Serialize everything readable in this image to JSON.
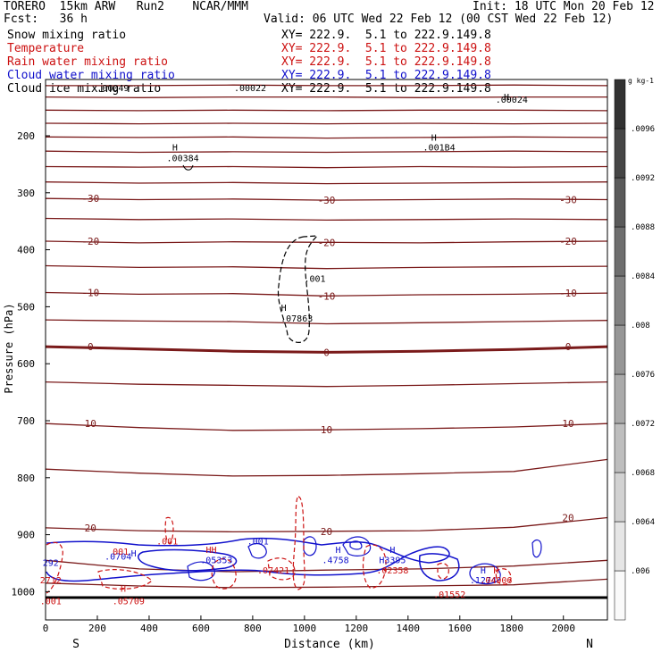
{
  "header": {
    "model": "TORERO  15km ARW   Run2    NCAR/MMM",
    "init": "Init: 18 UTC Mon 20 Feb 12",
    "fcst": "Fcst:   36 h",
    "valid": "Valid: 06 UTC Wed 22 Feb 12 (00 CST Wed 22 Feb 12)",
    "fields": [
      {
        "name": "Snow mixing ratio",
        "xy": "XY= 222.9.  5.1 to 222.9.149.8",
        "color": "#000000"
      },
      {
        "name": "Temperature",
        "xy": "XY= 222.9.  5.1 to 222.9.149.8",
        "color": "#cc1111"
      },
      {
        "name": "Rain water mixing ratio",
        "xy": "XY= 222.9.  5.1 to 222.9.149.8",
        "color": "#cc1111"
      },
      {
        "name": "Cloud water mixing ratio",
        "xy": "XY= 222.9.  5.1 to 222.9.149.8",
        "color": "#1111cc"
      },
      {
        "name": "Cloud ice mixing ratio",
        "xy": "XY= 222.9.  5.1 to 222.9.149.8",
        "color": "#000000"
      }
    ]
  },
  "chart_data": {
    "type": "contour",
    "xlabel": "Distance (km)",
    "ylabel": "Pressure (hPa)",
    "xlim": [
      0,
      2170
    ],
    "ylim": [
      1010,
      100
    ],
    "x_ticks": [
      0,
      200,
      400,
      600,
      800,
      1000,
      1200,
      1400,
      1600,
      1800,
      2000
    ],
    "y_ticks": [
      200,
      300,
      400,
      500,
      600,
      700,
      800,
      900,
      1000
    ],
    "x_end_labels": {
      "left": "S",
      "right": "N"
    },
    "temperature_color": "#7a1a1a",
    "temperature_isotherms": [
      {
        "y": [
          112,
          112,
          111,
          112,
          112,
          111,
          112
        ],
        "bold": false
      },
      {
        "y": [
          132,
          133,
          132,
          132,
          133,
          132,
          132
        ],
        "bold": false
      },
      {
        "y": [
          155,
          156,
          155,
          156,
          155,
          155,
          156
        ],
        "bold": false
      },
      {
        "y": [
          178,
          179,
          178,
          179,
          178,
          179,
          178
        ],
        "bold": false
      },
      {
        "y": [
          202,
          203,
          202,
          204,
          203,
          202,
          203
        ],
        "bold": false
      },
      {
        "y": [
          227,
          229,
          228,
          229,
          228,
          227,
          228
        ],
        "bold": false
      },
      {
        "y": [
          254,
          255,
          254,
          256,
          254,
          255,
          254
        ],
        "bold": false
      },
      {
        "y": [
          281,
          283,
          282,
          284,
          283,
          282,
          281
        ],
        "bold": false
      },
      {
        "y": [
          310,
          312,
          311,
          313,
          312,
          311,
          312
        ],
        "label": "-30",
        "bold": false
      },
      {
        "y": [
          345,
          347,
          346,
          348,
          347,
          346,
          347
        ],
        "bold": false
      },
      {
        "y": [
          385,
          388,
          386,
          387,
          388,
          386,
          385
        ],
        "label": "-20",
        "bold": false
      },
      {
        "y": [
          428,
          431,
          430,
          433,
          431,
          430,
          429
        ],
        "bold": false
      },
      {
        "y": [
          475,
          478,
          477,
          481,
          479,
          478,
          476
        ],
        "label": "-10",
        "bold": false
      },
      {
        "y": [
          523,
          525,
          526,
          530,
          528,
          526,
          524
        ],
        "bold": false
      },
      {
        "y": [
          570,
          574,
          578,
          580,
          578,
          575,
          570
        ],
        "label": "0",
        "bold": true
      },
      {
        "y": [
          632,
          636,
          638,
          640,
          638,
          635,
          632
        ],
        "bold": false
      },
      {
        "y": [
          705,
          712,
          717,
          716,
          714,
          711,
          705
        ],
        "label": "10",
        "bold": false
      },
      {
        "y": [
          785,
          792,
          797,
          796,
          793,
          789,
          768
        ],
        "bold": false
      },
      {
        "y": [
          888,
          893,
          895,
          894,
          893,
          887,
          870
        ],
        "label": "20",
        "bold": false
      },
      {
        "y": [
          945,
          960,
          965,
          962,
          960,
          955,
          945
        ],
        "bold": false
      },
      {
        "y": [
          985,
          990,
          993,
          992,
          990,
          988,
          978
        ],
        "bold": false
      }
    ],
    "maxima_labels": [
      {
        "x": 260,
        "p": 122,
        "text": ".00049",
        "color": "#000000"
      },
      {
        "x": 790,
        "p": 122,
        "text": ".00022",
        "color": "#000000"
      },
      {
        "x": 1780,
        "p": 137,
        "text": "H",
        "color": "#000000"
      },
      {
        "x": 1800,
        "p": 142,
        "text": ".00024",
        "color": "#000000"
      },
      {
        "x": 1500,
        "p": 209,
        "text": "H",
        "color": "#000000"
      },
      {
        "x": 1520,
        "p": 226,
        "text": ".001B4",
        "color": "#000000"
      },
      {
        "x": 500,
        "p": 226,
        "text": "H",
        "color": "#000000"
      },
      {
        "x": 530,
        "p": 245,
        "text": ".00384",
        "color": "#000000"
      },
      {
        "x": 1040,
        "p": 456,
        "text": ".001",
        "color": "#000000"
      },
      {
        "x": 920,
        "p": 507,
        "text": "H",
        "color": "#000000"
      },
      {
        "x": 970,
        "p": 526,
        "text": ".07863",
        "color": "#000000"
      },
      {
        "x": 340,
        "p": 938,
        "text": "H",
        "color": "#1111cc"
      },
      {
        "x": 280,
        "p": 944,
        "text": ".0704",
        "color": "#1111cc"
      },
      {
        "x": 290,
        "p": 935,
        "text": "001",
        "color": "#cc1111"
      },
      {
        "x": 470,
        "p": 917,
        "text": ".001",
        "color": "#cc1111"
      },
      {
        "x": 640,
        "p": 932,
        "text": "HH",
        "color": "#cc1111"
      },
      {
        "x": 660,
        "p": 950,
        "text": ".05353",
        "color": "#1111cc"
      },
      {
        "x": 820,
        "p": 917,
        "text": ".001",
        "color": "#1111cc"
      },
      {
        "x": 880,
        "p": 968,
        "text": ".07421",
        "color": "#cc1111"
      },
      {
        "x": 1120,
        "p": 950,
        "text": ".4758",
        "color": "#1111cc"
      },
      {
        "x": 1130,
        "p": 932,
        "text": "H",
        "color": "#1111cc"
      },
      {
        "x": 1340,
        "p": 932,
        "text": "H",
        "color": "#1111cc"
      },
      {
        "x": 1340,
        "p": 950,
        "text": "H3395",
        "color": "#1111cc"
      },
      {
        "x": 1340,
        "p": 968,
        "text": ".02358",
        "color": "#cc1111"
      },
      {
        "x": 1560,
        "p": 1010,
        "text": ".01552",
        "color": "#cc1111"
      },
      {
        "x": 1690,
        "p": 968,
        "text": "H",
        "color": "#1111cc"
      },
      {
        "x": 1690,
        "p": 985,
        "text": ".1274",
        "color": "#1111cc"
      },
      {
        "x": 1740,
        "p": 985,
        "text": ".04906",
        "color": "#cc1111"
      },
      {
        "x": 1740,
        "p": 968,
        "text": "H",
        "color": "#cc1111"
      },
      {
        "x": 300,
        "p": 1000,
        "text": "H",
        "color": "#cc1111"
      },
      {
        "x": 320,
        "p": 1022,
        "text": ".05709",
        "color": "#cc1111"
      },
      {
        "x": 20,
        "p": 1022,
        "text": ".001",
        "color": "#cc1111"
      },
      {
        "x": 20,
        "p": 985,
        "text": "2712",
        "color": "#cc1111"
      },
      {
        "x": 20,
        "p": 955,
        "text": "292",
        "color": "#1111cc"
      }
    ],
    "colorbar": {
      "unit": "g kg-1",
      "ticks": [
        ".006",
        ".0064",
        ".0068",
        ".0072",
        ".0076",
        ".008",
        ".0084",
        ".0088",
        ".0092",
        ".0096"
      ]
    }
  }
}
